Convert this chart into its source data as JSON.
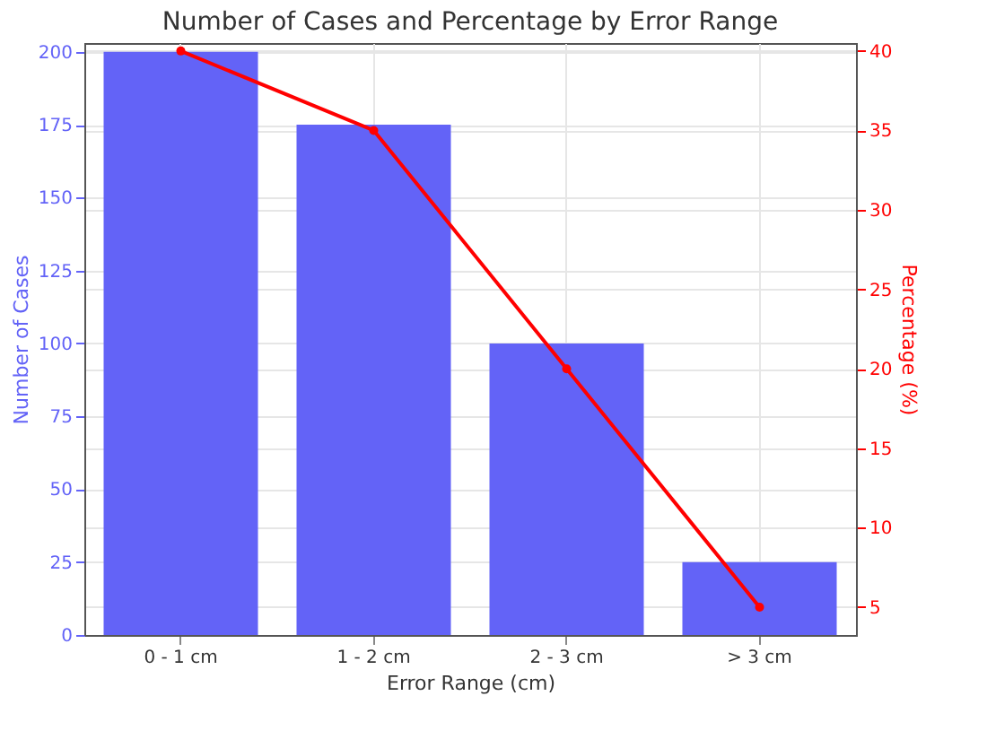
{
  "chart_data": {
    "type": "bar",
    "title": "Number of Cases and Percentage by Error Range",
    "xlabel": "Error Range (cm)",
    "ylabel": "Number of Cases",
    "y2label": "Percentage (%)",
    "categories": [
      "0 - 1 cm",
      "1 - 2 cm",
      "2 - 3 cm",
      "> 3 cm"
    ],
    "series": [
      {
        "color": "#6363f7",
        "values": [
          200,
          175,
          100,
          25
        ]
      },
      {
        "type": "line",
        "axis": "y2",
        "color": "#ff0000",
        "values": [
          40,
          35,
          20,
          5
        ],
        "marker": "circle"
      }
    ],
    "ylim": [
      0,
      203
    ],
    "yticks": [
      0,
      25,
      50,
      75,
      100,
      125,
      150,
      175,
      200
    ],
    "y2lim": [
      3.25,
      40.5
    ],
    "y2ticks": [
      5,
      10,
      15,
      20,
      25,
      30,
      35,
      40
    ],
    "grid": true
  }
}
